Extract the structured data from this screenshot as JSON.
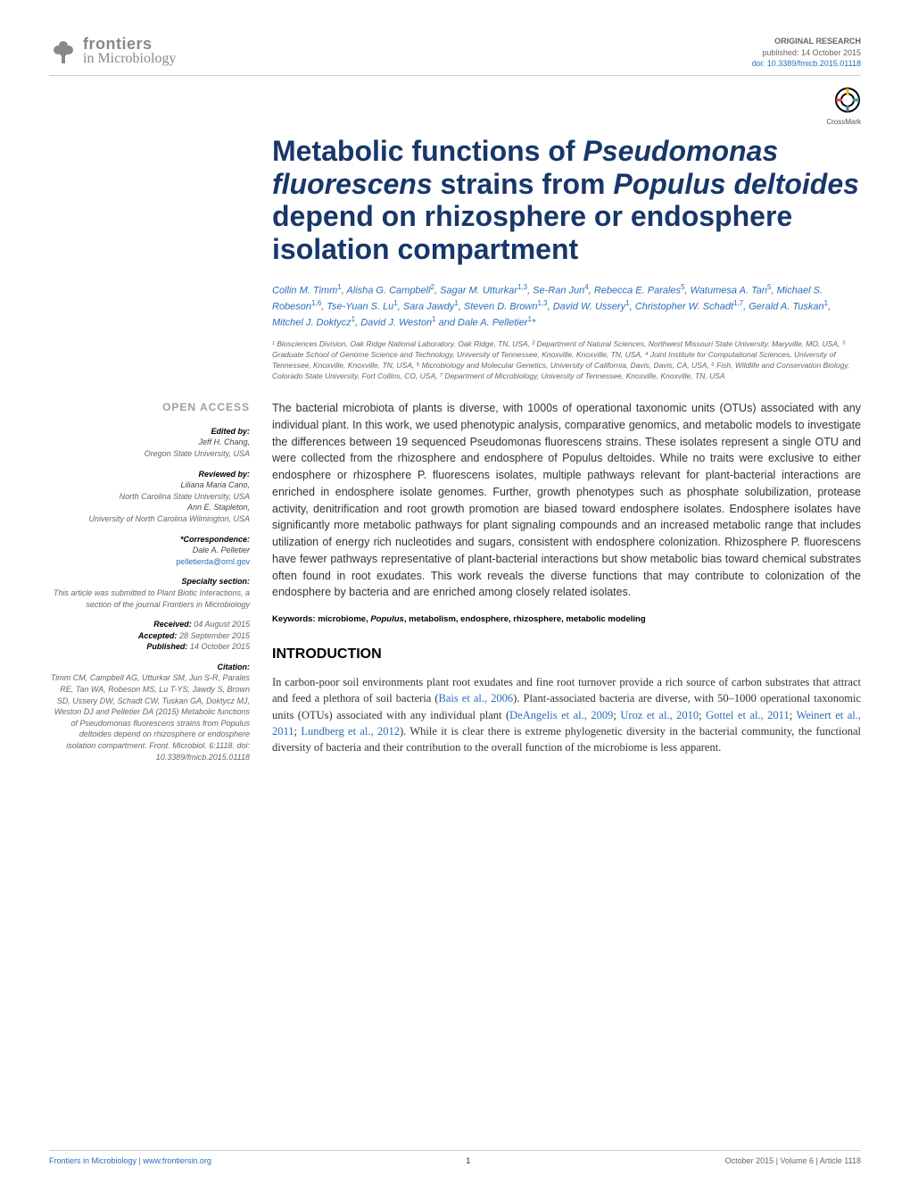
{
  "journal": {
    "name_top": "frontiers",
    "name_bottom": "in Microbiology",
    "logo_color": "#888888"
  },
  "meta": {
    "article_type": "ORIGINAL RESEARCH",
    "published": "published: 14 October 2015",
    "doi": "doi: 10.3389/fmicb.2015.01118",
    "crossmark_label": "CrossMark"
  },
  "title": "Metabolic functions of Pseudomonas fluorescens strains from Populus deltoides depend on rhizosphere or endosphere isolation compartment",
  "title_color": "#18376a",
  "title_fontsize": 32,
  "authors_html": "Collin M. Timm<sup>1</sup>, Alisha G. Campbell<sup>2</sup>, Sagar M. Utturkar<sup>1,3</sup>, Se-Ran Jun<sup>4</sup>, Rebecca E. Parales<sup>5</sup>, Watumesa A. Tan<sup>5</sup>, Michael S. Robeson<sup>1,6</sup>, Tse-Yuan S. Lu<sup>1</sup>, Sara Jawdy<sup>1</sup>, Steven D. Brown<sup>1,3</sup>, David W. Ussery<sup>1</sup>, Christopher W. Schadt<sup>1,7</sup>, Gerald A. Tuskan<sup>1</sup>, Mitchel J. Doktycz<sup>1</sup>, David J. Weston<sup>1</sup> and Dale A. Pelletier<sup>1</sup>*",
  "affiliations": "¹ Biosciences Division, Oak Ridge National Laboratory, Oak Ridge, TN, USA, ² Department of Natural Sciences, Northwest Missouri State University, Maryville, MO, USA, ³ Graduate School of Genome Science and Technology, University of Tennessee, Knoxville, Knoxville, TN, USA, ⁴ Joint Institute for Computational Sciences, University of Tennessee, Knoxville, Knoxville, TN, USA, ⁵ Microbiology and Molecular Genetics, University of California, Davis, Davis, CA, USA, ⁶ Fish, Wildlife and Conservation Biology, Colorado State University, Fort Collins, CO, USA, ⁷ Department of Microbiology, University of Tennessee, Knoxville, Knoxville, TN, USA",
  "sidebar": {
    "open_access": "OPEN ACCESS",
    "edited_by_label": "Edited by:",
    "edited_by_name": "Jeff H. Chang,",
    "edited_by_inst": "Oregon State University, USA",
    "reviewed_by_label": "Reviewed by:",
    "reviewer1_name": "Liliana Maria Cano,",
    "reviewer1_inst": "North Carolina State University, USA",
    "reviewer2_name": "Ann E. Stapleton,",
    "reviewer2_inst": "University of North Carolina Wilmington, USA",
    "correspondence_label": "*Correspondence:",
    "correspondence_name": "Dale A. Pelletier",
    "correspondence_email": "pelletierda@ornl.gov",
    "specialty_label": "Specialty section:",
    "specialty_text": "This article was submitted to Plant Biotic Interactions, a section of the journal Frontiers in Microbiology",
    "received_label": "Received:",
    "received_date": "04 August 2015",
    "accepted_label": "Accepted:",
    "accepted_date": "28 September 2015",
    "published_label": "Published:",
    "published_date": "14 October 2015",
    "citation_label": "Citation:",
    "citation_text": "Timm CM, Campbell AG, Utturkar SM, Jun S-R, Parales RE, Tan WA, Robeson MS, Lu T-YS, Jawdy S, Brown SD, Ussery DW, Schadt CW, Tuskan GA, Doktycz MJ, Weston DJ and Pelletier DA (2015) Metabolic functions of Pseudomonas fluorescens strains from Populus deltoides depend on rhizosphere or endosphere isolation compartment. Front. Microbiol. 6:1118. doi: 10.3389/fmicb.2015.01118"
  },
  "abstract": "The bacterial microbiota of plants is diverse, with 1000s of operational taxonomic units (OTUs) associated with any individual plant. In this work, we used phenotypic analysis, comparative genomics, and metabolic models to investigate the differences between 19 sequenced Pseudomonas fluorescens strains. These isolates represent a single OTU and were collected from the rhizosphere and endosphere of Populus deltoides. While no traits were exclusive to either endosphere or rhizosphere P. fluorescens isolates, multiple pathways relevant for plant-bacterial interactions are enriched in endosphere isolate genomes. Further, growth phenotypes such as phosphate solubilization, protease activity, denitrification and root growth promotion are biased toward endosphere isolates. Endosphere isolates have significantly more metabolic pathways for plant signaling compounds and an increased metabolic range that includes utilization of energy rich nucleotides and sugars, consistent with endosphere colonization. Rhizosphere P. fluorescens have fewer pathways representative of plant-bacterial interactions but show metabolic bias toward chemical substrates often found in root exudates. This work reveals the diverse functions that may contribute to colonization of the endosphere by bacteria and are enriched among closely related isolates.",
  "keywords_label": "Keywords:",
  "keywords": "microbiome, Populus, metabolism, endosphere, rhizosphere, metabolic modeling",
  "section_heading": "INTRODUCTION",
  "intro_text": "In carbon-poor soil environments plant root exudates and fine root turnover provide a rich source of carbon substrates that attract and feed a plethora of soil bacteria (Bais et al., 2006). Plant-associated bacteria are diverse, with 50–1000 operational taxonomic units (OTUs) associated with any individual plant (DeAngelis et al., 2009; Uroz et al., 2010; Gottel et al., 2011; Weinert et al., 2011; Lundberg et al., 2012). While it is clear there is extreme phylogenetic diversity in the bacterial community, the functional diversity of bacteria and their contribution to the overall function of the microbiome is less apparent.",
  "footer": {
    "left_journal": "Frontiers in Microbiology",
    "left_url": "www.frontiersin.org",
    "page": "1",
    "right": "October 2015 | Volume 6 | Article 1118"
  },
  "link_color": "#2a6ebb",
  "body_text_color": "#333333"
}
